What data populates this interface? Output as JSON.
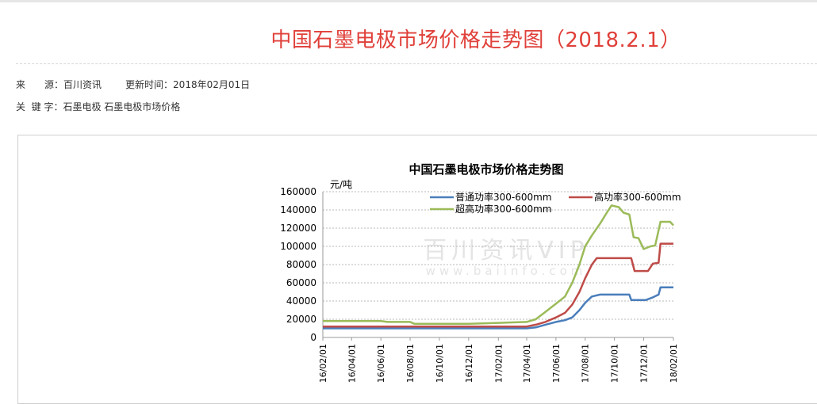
{
  "page": {
    "title": "中国石墨电极市场价格走势图（2018.2.1）",
    "meta": {
      "source_label": "来　　源：",
      "source_value": "百川资讯",
      "updated_label": "更新时间：",
      "updated_value": "2018年02月01日",
      "keywords_label": "关  键 字：",
      "keywords_value": "石墨电极 石墨电极市场价格"
    }
  },
  "chart_data": {
    "type": "line",
    "title": "中国石墨电极市场价格走势图",
    "ylabel": "元/吨",
    "xlabel": "",
    "ylim": [
      0,
      160000
    ],
    "yticks": [
      0,
      20000,
      40000,
      60000,
      80000,
      100000,
      120000,
      140000,
      160000
    ],
    "ytick_labels": [
      "0",
      "20000",
      "40000",
      "60000",
      "80000",
      "100000",
      "120000",
      "140000",
      "160000"
    ],
    "xticks": [
      "16/02/01",
      "16/04/01",
      "16/06/01",
      "16/08/01",
      "16/10/01",
      "16/12/01",
      "17/02/01",
      "17/04/01",
      "17/06/01",
      "17/08/01",
      "17/10/01",
      "17/12/01",
      "18/02/01"
    ],
    "x_range": [
      "2016-02-01",
      "2018-02-01"
    ],
    "grid": "horizontal dashed",
    "legend_position": "top",
    "watermark": "百川资讯VIP www.baiinfo.com",
    "series": [
      {
        "name": "普通功率300-600mm",
        "color": "#4a7ebb",
        "points": [
          [
            "2016-02-01",
            10000
          ],
          [
            "2016-05-01",
            10000
          ],
          [
            "2016-08-01",
            10000
          ],
          [
            "2016-11-01",
            10000
          ],
          [
            "2017-02-01",
            10000
          ],
          [
            "2017-03-15",
            10000
          ],
          [
            "2017-04-01",
            10000
          ],
          [
            "2017-04-20",
            11000
          ],
          [
            "2017-05-10",
            14000
          ],
          [
            "2017-06-01",
            17000
          ],
          [
            "2017-06-20",
            19000
          ],
          [
            "2017-07-05",
            22000
          ],
          [
            "2017-07-20",
            30000
          ],
          [
            "2017-08-01",
            38000
          ],
          [
            "2017-08-15",
            45000
          ],
          [
            "2017-09-01",
            47000
          ],
          [
            "2017-10-01",
            47000
          ],
          [
            "2017-11-01",
            47000
          ],
          [
            "2017-11-05",
            41000
          ],
          [
            "2017-12-05",
            41000
          ],
          [
            "2017-12-20",
            44000
          ],
          [
            "2018-01-01",
            47000
          ],
          [
            "2018-01-05",
            55000
          ],
          [
            "2018-02-01",
            55000
          ]
        ]
      },
      {
        "name": "高功率300-600mm",
        "color": "#be4b48",
        "points": [
          [
            "2016-02-01",
            12000
          ],
          [
            "2016-06-01",
            12000
          ],
          [
            "2016-10-01",
            12000
          ],
          [
            "2017-02-01",
            12000
          ],
          [
            "2017-04-01",
            12000
          ],
          [
            "2017-04-20",
            14000
          ],
          [
            "2017-05-10",
            17000
          ],
          [
            "2017-06-01",
            22000
          ],
          [
            "2017-06-20",
            27000
          ],
          [
            "2017-07-05",
            36000
          ],
          [
            "2017-07-20",
            50000
          ],
          [
            "2017-08-01",
            65000
          ],
          [
            "2017-08-15",
            80000
          ],
          [
            "2017-08-25",
            87000
          ],
          [
            "2017-10-01",
            87000
          ],
          [
            "2017-11-05",
            87000
          ],
          [
            "2017-11-12",
            73000
          ],
          [
            "2017-12-10",
            73000
          ],
          [
            "2017-12-20",
            81000
          ],
          [
            "2018-01-01",
            82000
          ],
          [
            "2018-01-05",
            103000
          ],
          [
            "2018-02-01",
            103000
          ]
        ]
      },
      {
        "name": "超高功率300-600mm",
        "color": "#9bbb59",
        "points": [
          [
            "2016-02-01",
            18000
          ],
          [
            "2016-06-01",
            18000
          ],
          [
            "2016-06-15",
            17000
          ],
          [
            "2016-08-01",
            17000
          ],
          [
            "2016-08-10",
            15000
          ],
          [
            "2016-12-01",
            15000
          ],
          [
            "2017-02-01",
            16000
          ],
          [
            "2017-04-01",
            17000
          ],
          [
            "2017-04-20",
            20000
          ],
          [
            "2017-05-10",
            28000
          ],
          [
            "2017-06-01",
            37000
          ],
          [
            "2017-06-20",
            45000
          ],
          [
            "2017-07-05",
            60000
          ],
          [
            "2017-07-20",
            80000
          ],
          [
            "2017-08-01",
            100000
          ],
          [
            "2017-08-15",
            112000
          ],
          [
            "2017-09-01",
            125000
          ],
          [
            "2017-09-15",
            137000
          ],
          [
            "2017-09-25",
            145000
          ],
          [
            "2017-10-10",
            143000
          ],
          [
            "2017-10-20",
            137000
          ],
          [
            "2017-11-01",
            135000
          ],
          [
            "2017-11-10",
            110000
          ],
          [
            "2017-11-20",
            109000
          ],
          [
            "2017-12-01",
            97000
          ],
          [
            "2017-12-15",
            100000
          ],
          [
            "2017-12-25",
            101000
          ],
          [
            "2018-01-05",
            127000
          ],
          [
            "2018-01-25",
            127000
          ],
          [
            "2018-02-01",
            123000
          ]
        ]
      }
    ]
  }
}
